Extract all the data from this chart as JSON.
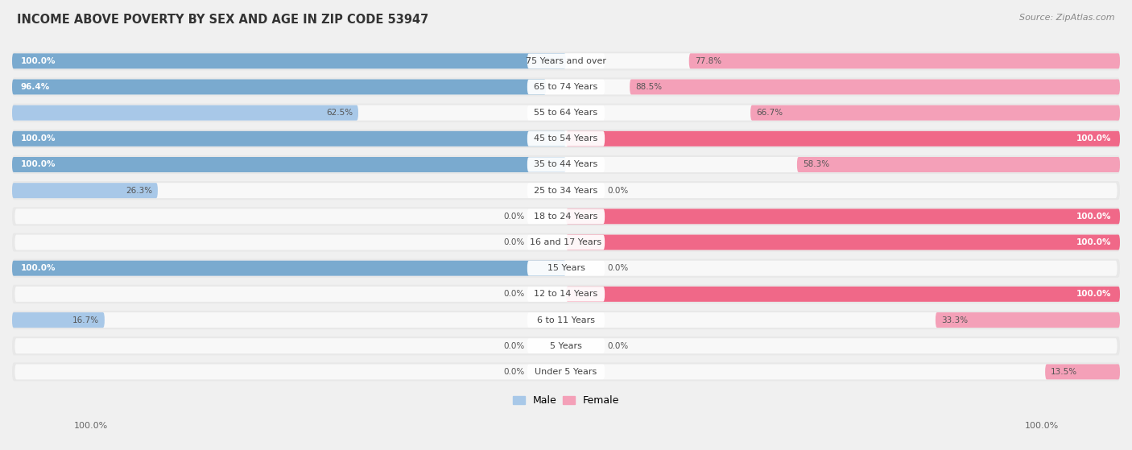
{
  "title": "INCOME ABOVE POVERTY BY SEX AND AGE IN ZIP CODE 53947",
  "source": "Source: ZipAtlas.com",
  "categories": [
    "Under 5 Years",
    "5 Years",
    "6 to 11 Years",
    "12 to 14 Years",
    "15 Years",
    "16 and 17 Years",
    "18 to 24 Years",
    "25 to 34 Years",
    "35 to 44 Years",
    "45 to 54 Years",
    "55 to 64 Years",
    "65 to 74 Years",
    "75 Years and over"
  ],
  "male_values": [
    0.0,
    0.0,
    16.7,
    0.0,
    100.0,
    0.0,
    0.0,
    26.3,
    100.0,
    100.0,
    62.5,
    96.4,
    100.0
  ],
  "female_values": [
    13.5,
    0.0,
    33.3,
    100.0,
    0.0,
    100.0,
    100.0,
    0.0,
    58.3,
    100.0,
    66.7,
    88.5,
    77.8
  ],
  "male_color": "#a8c8e8",
  "female_color": "#f4a0b8",
  "male_color_dark": "#7aaacf",
  "female_color_dark": "#f06888",
  "background_color": "#f0f0f0",
  "bar_bg_color": "#e8e8e8",
  "bar_inner_color": "#f8f8f8",
  "max_value": 100.0,
  "bar_height": 0.72,
  "axis_label_left": "100.0%",
  "axis_label_right": "100.0%",
  "legend_male": "Male",
  "legend_female": "Female"
}
